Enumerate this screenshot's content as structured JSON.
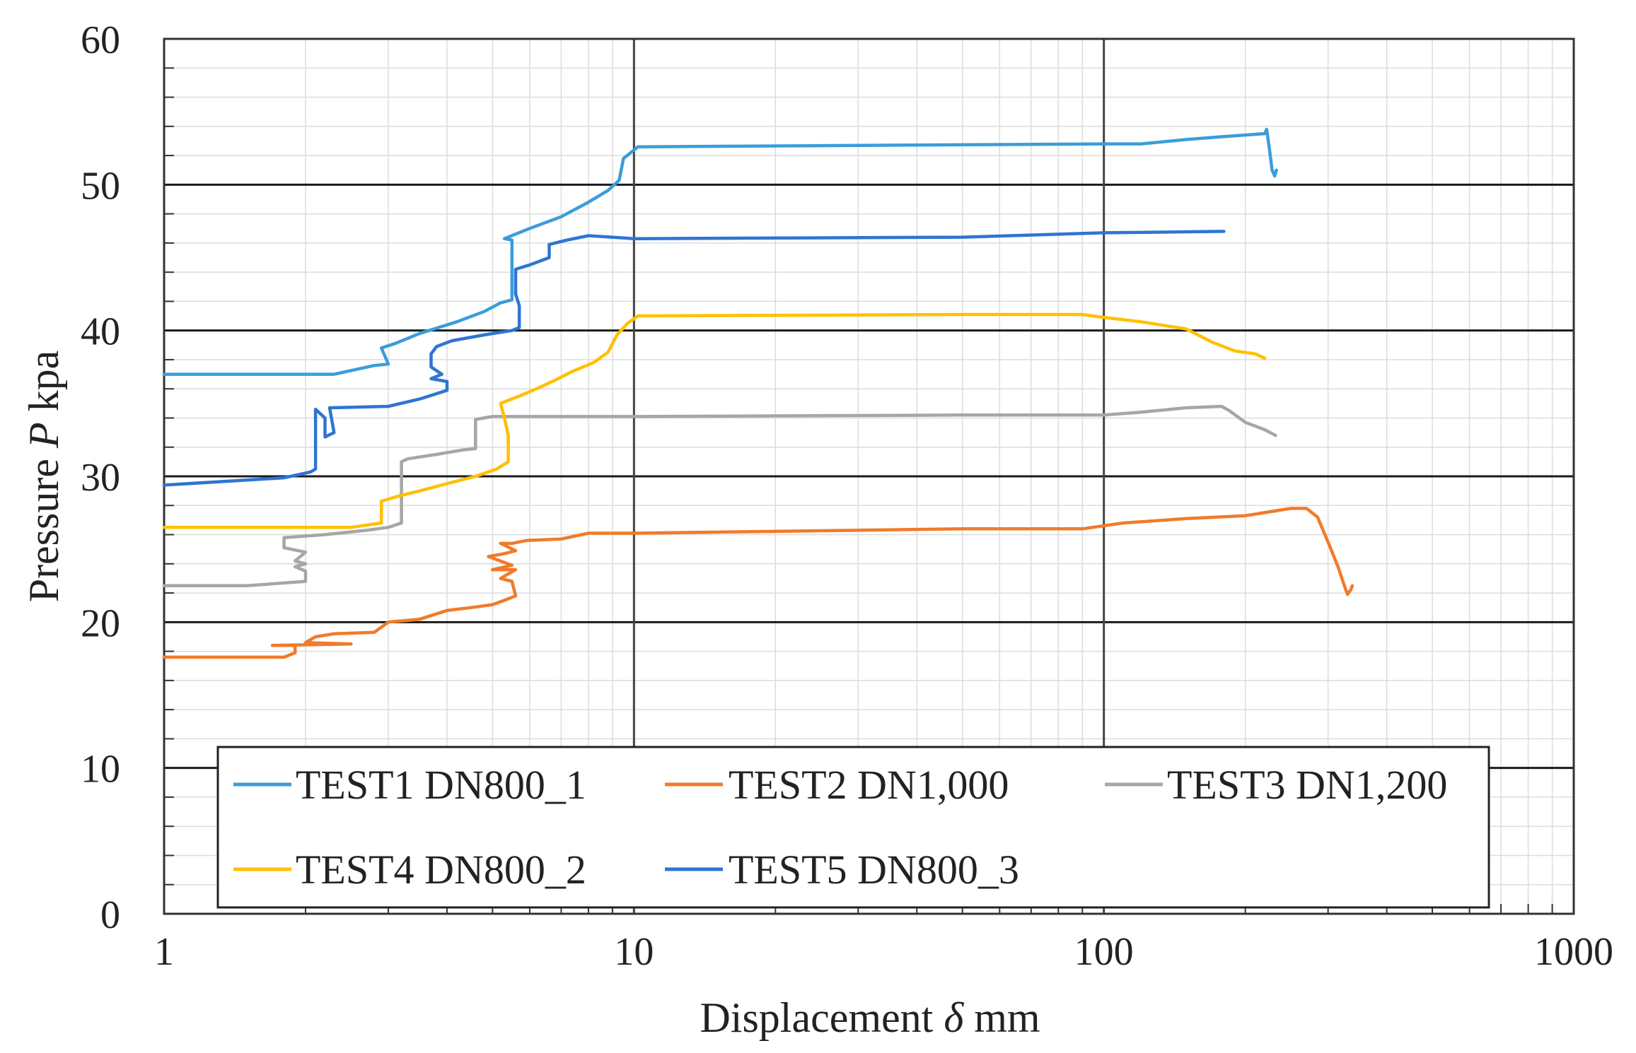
{
  "chart_data": {
    "type": "line",
    "title": "",
    "xlabel": "Displacement δ mm",
    "xlabel_parts": [
      "Displacement ",
      "δ",
      " mm"
    ],
    "ylabel": "Pressure P kpa",
    "ylabel_parts": [
      "Pressure ",
      "P",
      " kpa"
    ],
    "xscale": "log",
    "xlim": [
      1,
      1000
    ],
    "ylim": [
      0,
      60
    ],
    "x_ticks": [
      1,
      10,
      100,
      1000
    ],
    "x_tick_labels": [
      "1",
      "10",
      "100",
      "1000"
    ],
    "y_ticks": [
      0,
      10,
      20,
      30,
      40,
      50,
      60
    ],
    "y_tick_labels": [
      "0",
      "10",
      "20",
      "30",
      "40",
      "50",
      "60"
    ],
    "grid": true,
    "legend_position": "bottom-left",
    "series": [
      {
        "name": "TEST1 DN800_1",
        "color": "#3A9DDA",
        "points": [
          [
            1,
            37
          ],
          [
            2.3,
            37
          ],
          [
            2.8,
            37.6
          ],
          [
            3,
            37.7
          ],
          [
            2.9,
            38.8
          ],
          [
            3.1,
            39.1
          ],
          [
            3.5,
            39.8
          ],
          [
            4.2,
            40.6
          ],
          [
            4.8,
            41.3
          ],
          [
            5.2,
            41.9
          ],
          [
            5.5,
            42.1
          ],
          [
            5.5,
            46.2
          ],
          [
            5.3,
            46.3
          ],
          [
            6,
            47
          ],
          [
            7,
            47.8
          ],
          [
            8,
            48.8
          ],
          [
            8.8,
            49.6
          ],
          [
            9.3,
            50.3
          ],
          [
            9.5,
            51.8
          ],
          [
            10.2,
            52.6
          ],
          [
            100,
            52.8
          ],
          [
            120,
            52.8
          ],
          [
            150,
            53.1
          ],
          [
            180,
            53.3
          ],
          [
            220,
            53.5
          ],
          [
            222,
            53.8
          ],
          [
            225,
            52.5
          ],
          [
            228,
            51
          ],
          [
            231,
            50.6
          ],
          [
            233,
            51
          ]
        ]
      },
      {
        "name": "TEST2 DN1,000",
        "color": "#F07B2A",
        "points": [
          [
            1,
            17.6
          ],
          [
            1.8,
            17.6
          ],
          [
            1.9,
            17.9
          ],
          [
            1.9,
            18.4
          ],
          [
            1.7,
            18.4
          ],
          [
            2.5,
            18.5
          ],
          [
            2,
            18.6
          ],
          [
            2.1,
            19
          ],
          [
            2.3,
            19.2
          ],
          [
            2.8,
            19.3
          ],
          [
            3,
            20
          ],
          [
            3.5,
            20.2
          ],
          [
            4,
            20.8
          ],
          [
            4.5,
            21
          ],
          [
            5,
            21.2
          ],
          [
            5.3,
            21.5
          ],
          [
            5.6,
            21.8
          ],
          [
            5.5,
            22.8
          ],
          [
            5.2,
            23
          ],
          [
            5.6,
            23.6
          ],
          [
            5,
            23.6
          ],
          [
            5.5,
            23.9
          ],
          [
            4.9,
            24.5
          ],
          [
            5.3,
            24.7
          ],
          [
            5.6,
            24.9
          ],
          [
            5.2,
            25.4
          ],
          [
            5.5,
            25.4
          ],
          [
            5.9,
            25.6
          ],
          [
            7,
            25.7
          ],
          [
            8,
            26.1
          ],
          [
            10,
            26.1
          ],
          [
            50,
            26.4
          ],
          [
            90,
            26.4
          ],
          [
            110,
            26.8
          ],
          [
            150,
            27.1
          ],
          [
            200,
            27.3
          ],
          [
            250,
            27.8
          ],
          [
            270,
            27.8
          ],
          [
            285,
            27.2
          ],
          [
            300,
            25.5
          ],
          [
            315,
            23.8
          ],
          [
            325,
            22.5
          ],
          [
            330,
            21.9
          ],
          [
            335,
            22.2
          ],
          [
            338,
            22.5
          ]
        ]
      },
      {
        "name": "TEST3 DN1,200",
        "color": "#A6A6A6",
        "points": [
          [
            1,
            22.5
          ],
          [
            1.5,
            22.5
          ],
          [
            2,
            22.8
          ],
          [
            2,
            23.5
          ],
          [
            1.9,
            23.8
          ],
          [
            2,
            24
          ],
          [
            1.9,
            24.2
          ],
          [
            2,
            24.8
          ],
          [
            1.8,
            25.1
          ],
          [
            1.8,
            25.8
          ],
          [
            2.2,
            26
          ],
          [
            2.7,
            26.3
          ],
          [
            3,
            26.5
          ],
          [
            3.2,
            26.8
          ],
          [
            3.2,
            31
          ],
          [
            3.3,
            31.2
          ],
          [
            3.8,
            31.5
          ],
          [
            4.3,
            31.8
          ],
          [
            4.6,
            31.9
          ],
          [
            4.6,
            33.9
          ],
          [
            5,
            34.1
          ],
          [
            10,
            34.1
          ],
          [
            50,
            34.2
          ],
          [
            100,
            34.2
          ],
          [
            120,
            34.4
          ],
          [
            150,
            34.7
          ],
          [
            178,
            34.8
          ],
          [
            185,
            34.5
          ],
          [
            200,
            33.7
          ],
          [
            220,
            33.2
          ],
          [
            232,
            32.8
          ]
        ]
      },
      {
        "name": "TEST4 DN800_2",
        "color": "#FFC000",
        "points": [
          [
            1,
            26.5
          ],
          [
            2.5,
            26.5
          ],
          [
            2.9,
            26.8
          ],
          [
            2.9,
            28.3
          ],
          [
            3.2,
            28.7
          ],
          [
            3.5,
            29
          ],
          [
            4,
            29.5
          ],
          [
            4.6,
            30
          ],
          [
            5.1,
            30.5
          ],
          [
            5.4,
            31
          ],
          [
            5.4,
            32.8
          ],
          [
            5.3,
            34
          ],
          [
            5.2,
            35
          ],
          [
            5.7,
            35.5
          ],
          [
            6.2,
            36
          ],
          [
            6.8,
            36.6
          ],
          [
            7.4,
            37.2
          ],
          [
            8.2,
            37.8
          ],
          [
            8.8,
            38.5
          ],
          [
            9.2,
            39.7
          ],
          [
            9.7,
            40.5
          ],
          [
            10.2,
            41
          ],
          [
            50,
            41.1
          ],
          [
            90,
            41.1
          ],
          [
            100,
            40.9
          ],
          [
            120,
            40.6
          ],
          [
            150,
            40.1
          ],
          [
            170,
            39.2
          ],
          [
            190,
            38.6
          ],
          [
            210,
            38.4
          ],
          [
            220,
            38.1
          ]
        ]
      },
      {
        "name": "TEST5 DN800_3",
        "color": "#2E75D2",
        "points": [
          [
            1,
            29.4
          ],
          [
            1.8,
            29.9
          ],
          [
            2.05,
            30.3
          ],
          [
            2.1,
            30.5
          ],
          [
            2.1,
            34.6
          ],
          [
            2.2,
            34
          ],
          [
            2.2,
            32.7
          ],
          [
            2.3,
            33
          ],
          [
            2.25,
            34.7
          ],
          [
            3,
            34.8
          ],
          [
            3.5,
            35.3
          ],
          [
            4,
            35.9
          ],
          [
            4,
            36.5
          ],
          [
            3.7,
            36.7
          ],
          [
            3.9,
            37
          ],
          [
            3.7,
            37.5
          ],
          [
            3.7,
            38.4
          ],
          [
            3.8,
            38.9
          ],
          [
            4.1,
            39.3
          ],
          [
            4.8,
            39.7
          ],
          [
            5.5,
            40
          ],
          [
            5.7,
            40.2
          ],
          [
            5.7,
            41.7
          ],
          [
            5.6,
            42.5
          ],
          [
            5.6,
            44.2
          ],
          [
            6,
            44.5
          ],
          [
            6.6,
            45
          ],
          [
            6.6,
            45.9
          ],
          [
            7.2,
            46.2
          ],
          [
            8,
            46.5
          ],
          [
            10,
            46.3
          ],
          [
            50,
            46.4
          ],
          [
            100,
            46.7
          ],
          [
            180,
            46.8
          ]
        ]
      }
    ]
  }
}
